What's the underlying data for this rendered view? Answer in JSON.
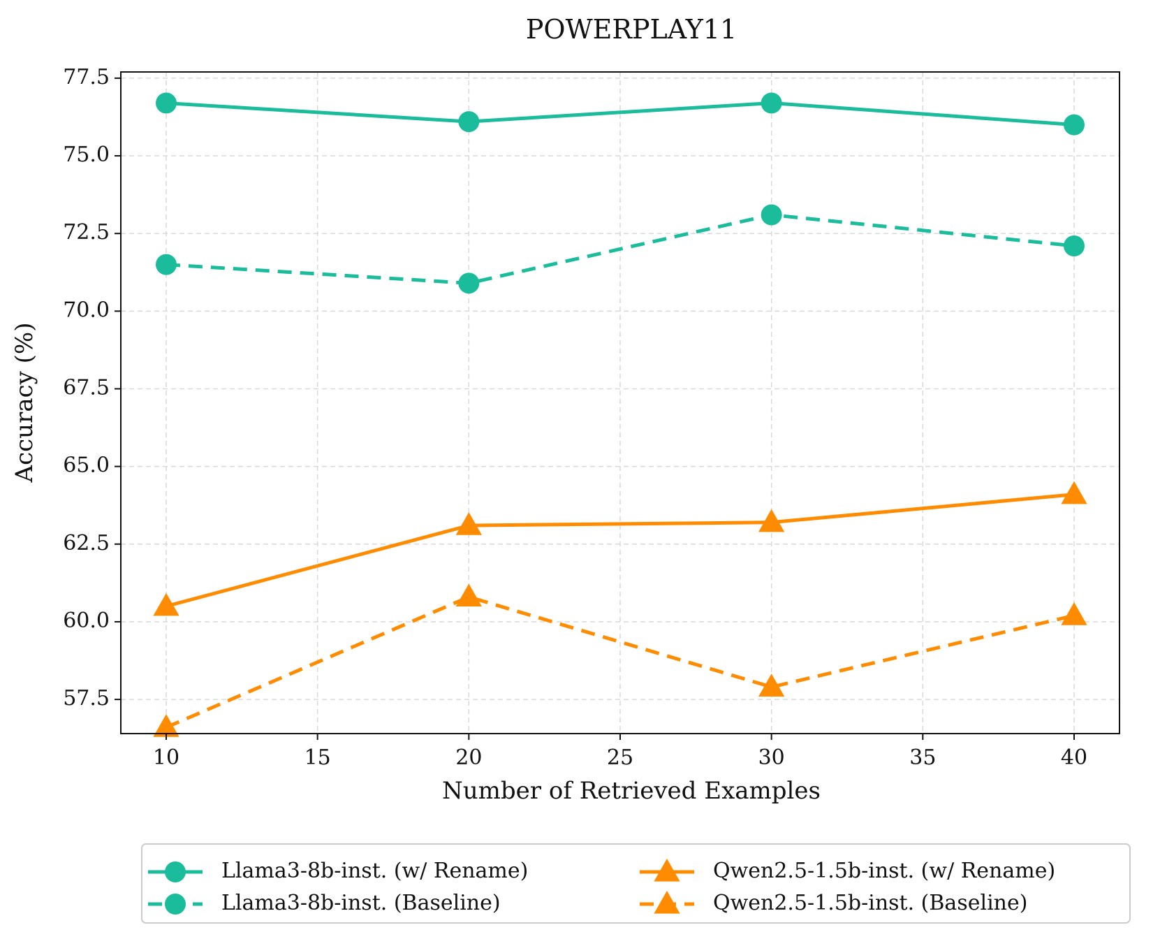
{
  "chart_data": {
    "type": "line",
    "title": "POWERPLAY11",
    "xlabel": "Number of Retrieved Examples",
    "ylabel": "Accuracy (%)",
    "x": [
      10,
      20,
      30,
      40
    ],
    "xlim": [
      8.5,
      41.5
    ],
    "ylim": [
      56.4,
      77.7
    ],
    "xticks": [
      10,
      15,
      20,
      25,
      30,
      35,
      40
    ],
    "yticks": [
      57.5,
      60.0,
      62.5,
      65.0,
      67.5,
      70.0,
      72.5,
      75.0,
      77.5
    ],
    "xtick_labels": [
      "10",
      "15",
      "20",
      "25",
      "30",
      "35",
      "40"
    ],
    "ytick_labels": [
      "57.5",
      "60.0",
      "62.5",
      "65.0",
      "67.5",
      "70.0",
      "72.5",
      "75.0",
      "77.5"
    ],
    "grid": true,
    "legend_position": "bottom-center",
    "series": [
      {
        "name": "Llama3-8b-inst. (w/ Rename)",
        "values": [
          76.7,
          76.1,
          76.7,
          76.0
        ],
        "color": "#1abc9c",
        "line": "solid",
        "marker": "circle"
      },
      {
        "name": "Llama3-8b-inst. (Baseline)",
        "values": [
          71.5,
          70.9,
          73.1,
          72.1
        ],
        "color": "#1abc9c",
        "line": "dashed",
        "marker": "circle"
      },
      {
        "name": "Qwen2.5-1.5b-inst. (w/ Rename)",
        "values": [
          60.5,
          63.1,
          63.2,
          64.1
        ],
        "color": "#ff8c00",
        "line": "solid",
        "marker": "triangle"
      },
      {
        "name": "Qwen2.5-1.5b-inst. (Baseline)",
        "values": [
          56.6,
          60.8,
          57.9,
          60.2
        ],
        "color": "#ff8c00",
        "line": "dashed",
        "marker": "triangle"
      }
    ]
  }
}
